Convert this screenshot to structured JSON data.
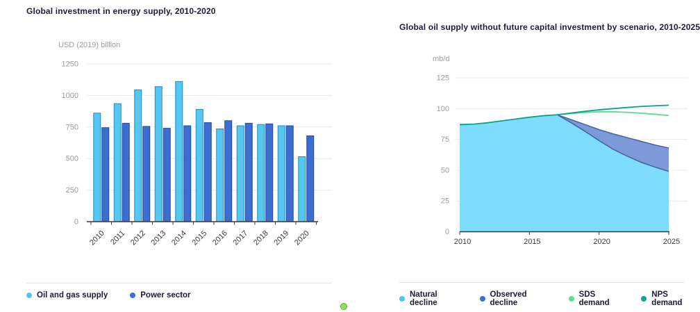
{
  "page": {
    "background": "#ffffff",
    "widget": {
      "fill": "#8ee060",
      "border": "#55b42f"
    }
  },
  "colors": {
    "title_text": "#1b1b33",
    "grid_line": "#ececec",
    "axis_line": "#3a3a3a",
    "y_tick_text": "#9b9b9b",
    "x_tick_text": "#3b3b3b",
    "legend_text": "#1b1b33"
  },
  "chart_data": [
    {
      "type": "bar",
      "title": "Global investment in energy supply, 2010-2020",
      "ylabel": "USD (2019) billion",
      "xlabel": "",
      "categories": [
        "2010",
        "2011",
        "2012",
        "2013",
        "2014",
        "2015",
        "2016",
        "2017",
        "2018",
        "2019",
        "2020"
      ],
      "ylim": [
        0,
        1250
      ],
      "yticks": [
        0,
        250,
        500,
        750,
        1000,
        1250
      ],
      "grid": true,
      "legend_position": "bottom",
      "series": [
        {
          "name": "Oil and gas supply",
          "fill": "#55c8f2",
          "stroke": "#2b85c4",
          "legend_color": "#4fc6f0",
          "values": [
            860,
            935,
            1045,
            1070,
            1110,
            890,
            735,
            760,
            770,
            760,
            515
          ]
        },
        {
          "name": "Power sector",
          "fill": "#3c6ed2",
          "stroke": "#24489b",
          "legend_color": "#3a70d2",
          "values": [
            745,
            780,
            755,
            740,
            760,
            785,
            800,
            780,
            775,
            760,
            680
          ]
        }
      ]
    },
    {
      "type": "area",
      "title": "Global oil supply without future capital investment by scenario, 2010-2025",
      "ylabel": "mb/d",
      "xlabel": "",
      "x": [
        2010,
        2011,
        2012,
        2013,
        2014,
        2015,
        2016,
        2017,
        2018,
        2019,
        2020,
        2021,
        2022,
        2023,
        2024,
        2025
      ],
      "xticks": [
        2010,
        2015,
        2020,
        2025
      ],
      "ylim": [
        0,
        125
      ],
      "yticks": [
        0,
        25,
        50,
        75,
        100,
        125
      ],
      "grid": true,
      "legend_position": "bottom",
      "diverge_year": 2017,
      "series": [
        {
          "name": "Natural decline",
          "render": "area",
          "fill": "#7eddfd",
          "legend_color": "#4fc6f0",
          "values": [
            87,
            87.4,
            88.5,
            90,
            91.5,
            93,
            94.2,
            95,
            88.5,
            81.5,
            74,
            67,
            61.5,
            56.5,
            52.5,
            49
          ]
        },
        {
          "name": "Observed decline",
          "render": "band",
          "fill": "#7d99da",
          "stroke": "#42619f",
          "legend_color": "#3a70d2",
          "values": [
            87,
            87.4,
            88.5,
            90,
            91.5,
            93,
            94.2,
            95,
            91,
            87,
            83,
            79.5,
            76.5,
            73.5,
            70.5,
            68
          ]
        },
        {
          "name": "SDS demand",
          "render": "line",
          "stroke": "#57dc8c",
          "legend_color": "#62dd91",
          "values": [
            87,
            87.4,
            88.5,
            90,
            91.5,
            93,
            94.2,
            95,
            96,
            96.9,
            97.4,
            97.4,
            97,
            96.3,
            95.4,
            94.4
          ]
        },
        {
          "name": "NPS demand",
          "render": "line",
          "stroke": "#0ea184",
          "legend_color": "#0da58c",
          "values": [
            87,
            87.4,
            88.5,
            90,
            91.5,
            93,
            94.2,
            95,
            96.4,
            97.8,
            99,
            100,
            100.9,
            101.7,
            102.3,
            102.8
          ]
        }
      ]
    }
  ]
}
